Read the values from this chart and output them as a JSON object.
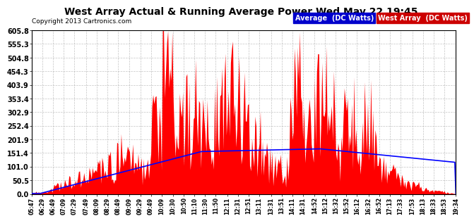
{
  "title": "West Array Actual & Running Average Power Wed May 22 19:45",
  "copyright": "Copyright 2013 Cartronics.com",
  "legend_avg_label": "Average  (DC Watts)",
  "legend_west_label": "West Array  (DC Watts)",
  "legend_avg_bg": "#0000cc",
  "legend_west_bg": "#cc0000",
  "background_color": "#ffffff",
  "plot_bg_color": "#ffffff",
  "grid_color": "#aaaaaa",
  "fill_color": "#ff0000",
  "line_color": "#0000ff",
  "ylim": [
    0.0,
    605.8
  ],
  "yticks": [
    0.0,
    50.5,
    101.0,
    151.4,
    201.9,
    252.4,
    302.9,
    353.4,
    403.9,
    454.3,
    504.8,
    555.3,
    605.8
  ],
  "xtick_labels": [
    "05:47",
    "06:29",
    "06:49",
    "07:09",
    "07:29",
    "07:49",
    "08:09",
    "08:29",
    "08:49",
    "09:09",
    "09:29",
    "09:49",
    "10:09",
    "10:30",
    "10:50",
    "11:10",
    "11:30",
    "11:50",
    "12:11",
    "12:31",
    "12:51",
    "13:11",
    "13:31",
    "13:51",
    "14:11",
    "14:31",
    "14:52",
    "15:12",
    "15:32",
    "15:52",
    "16:12",
    "16:32",
    "16:52",
    "17:13",
    "17:33",
    "17:53",
    "18:13",
    "18:33",
    "18:53",
    "19:34"
  ]
}
